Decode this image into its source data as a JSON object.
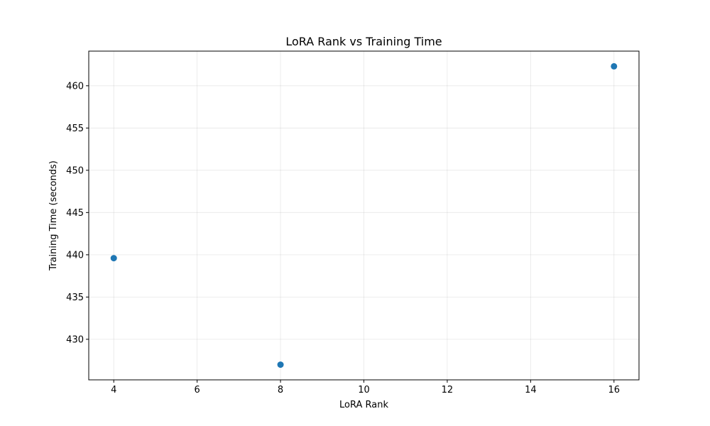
{
  "chart_data": {
    "type": "scatter",
    "title": "LoRA Rank vs Training Time",
    "xlabel": "LoRA Rank",
    "ylabel": "Training Time (seconds)",
    "xlim": [
      3.4,
      16.6
    ],
    "ylim": [
      425.2,
      464.1
    ],
    "xticks": [
      4,
      6,
      8,
      10,
      12,
      14,
      16
    ],
    "yticks": [
      430,
      435,
      440,
      445,
      450,
      455,
      460
    ],
    "grid": true,
    "marker_color": "#1f77b4",
    "points": [
      {
        "x": 4,
        "y": 439.6
      },
      {
        "x": 8,
        "y": 427.0
      },
      {
        "x": 16,
        "y": 462.3
      }
    ]
  }
}
